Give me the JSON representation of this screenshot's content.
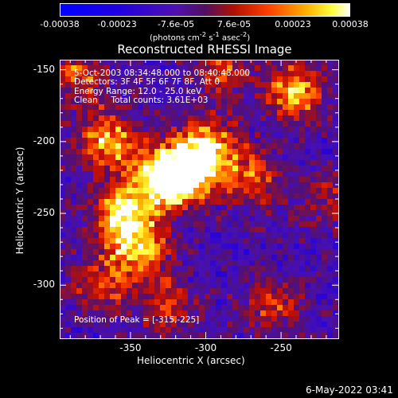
{
  "chart_data": {
    "type": "heatmap",
    "title": "Reconstructed RHESSI Image",
    "xlabel": "Heliocentric X (arcsec)",
    "ylabel": "Heliocentric Y (arcsec)",
    "xlim": [
      -397,
      -212
    ],
    "ylim": [
      -337,
      -143
    ],
    "x_ticks": [
      "-350",
      "-300",
      "-250"
    ],
    "x_tick_values": [
      -350,
      -300,
      -250
    ],
    "y_ticks": [
      "-150",
      "-200",
      "-250",
      "-300"
    ],
    "y_tick_values": [
      -150,
      -200,
      -250,
      -300
    ],
    "colorbar": {
      "ticks": [
        "-0.00038",
        "-0.00023",
        "-7.6e-05",
        "7.6e-05",
        "0.00023",
        "0.00038"
      ],
      "tick_values": [
        -0.00038,
        -0.00023,
        -7.6e-05,
        7.6e-05,
        0.00023,
        0.00038
      ],
      "units_prefix": "(photons cm",
      "units_exp1": "-2",
      "units_mid": " s",
      "units_exp2": "-1",
      "units_mid2": " asec",
      "units_exp3": "-2",
      "units_suffix": ")"
    },
    "annotations": {
      "time_range": "5-Oct-2003 08:34:48.000 to 08:40:48.000",
      "detectors": "Detectors: 3F 4F 5F 6F 7F 8F, Att 0",
      "energy_range": "Energy Range: 12.0 - 25.0 keV",
      "clean": "Clean     Total counts: 3.61E+03",
      "peak": "Position of Peak = [-315,-225]"
    },
    "sources": [
      {
        "x": -315,
        "y": -225,
        "strength": 1.0
      },
      {
        "x": -355,
        "y": -250,
        "strength": 0.95
      },
      {
        "x": -365,
        "y": -200,
        "strength": 0.85
      },
      {
        "x": -300,
        "y": -205,
        "strength": 0.9
      },
      {
        "x": -330,
        "y": -225,
        "strength": 0.8
      },
      {
        "x": -345,
        "y": -275,
        "strength": 0.75
      },
      {
        "x": -240,
        "y": -165,
        "strength": 0.8
      },
      {
        "x": -270,
        "y": -225,
        "strength": 0.55
      },
      {
        "x": -290,
        "y": -150,
        "strength": 0.5
      },
      {
        "x": -385,
        "y": -155,
        "strength": 0.55
      },
      {
        "x": -370,
        "y": -300,
        "strength": 0.5
      },
      {
        "x": -325,
        "y": -315,
        "strength": 0.45
      },
      {
        "x": -255,
        "y": -315,
        "strength": 0.45
      },
      {
        "x": -218,
        "y": -240,
        "strength": 0.35
      }
    ]
  },
  "footer": {
    "date": "6-May-2022 03:41"
  }
}
